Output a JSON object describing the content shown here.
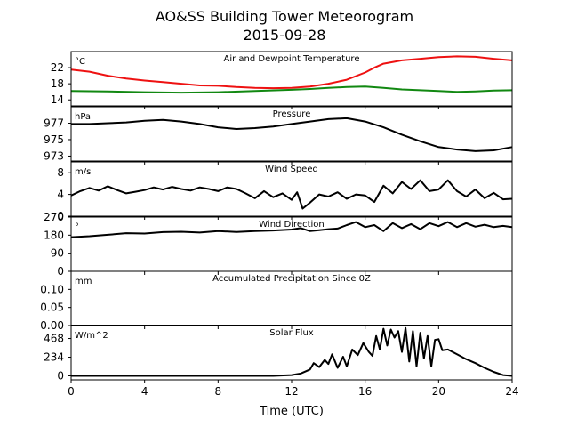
{
  "figure": {
    "title_line1": "AO&SS Building Tower Meteorogram",
    "title_line2": "2015-09-28",
    "xlabel": "Time (UTC)",
    "xticks": [
      0,
      4,
      8,
      12,
      16,
      20,
      24
    ],
    "xlim": [
      0,
      24
    ]
  },
  "chart_data": [
    {
      "type": "line",
      "title": "Air and Dewpoint Temperature",
      "unit": "°C",
      "ylim": [
        12.5,
        26
      ],
      "yticks": [
        14,
        18,
        22
      ],
      "series": [
        {
          "color": "#ee1111",
          "x": [
            0,
            1,
            2,
            3,
            4,
            5,
            6,
            7,
            8,
            9,
            10,
            11,
            12,
            13,
            14,
            15,
            16,
            16.5,
            17,
            18,
            19,
            20,
            21,
            22,
            23,
            24
          ],
          "values": [
            21.5,
            21.0,
            20.0,
            19.3,
            18.8,
            18.4,
            18.0,
            17.6,
            17.5,
            17.2,
            17.0,
            16.9,
            17.0,
            17.3,
            18.0,
            19.0,
            20.8,
            22.0,
            23.0,
            23.8,
            24.2,
            24.6,
            24.8,
            24.7,
            24.2,
            23.8
          ]
        },
        {
          "color": "#118811",
          "x": [
            0,
            2,
            4,
            6,
            8,
            10,
            12,
            13,
            14,
            15,
            16,
            17,
            18,
            19,
            20,
            21,
            22,
            23,
            24
          ],
          "values": [
            16.2,
            16.1,
            15.9,
            15.8,
            15.9,
            16.2,
            16.5,
            16.7,
            17.0,
            17.2,
            17.3,
            17.0,
            16.6,
            16.4,
            16.2,
            16.0,
            16.1,
            16.3,
            16.4
          ]
        }
      ]
    },
    {
      "type": "line",
      "title": "Pressure",
      "unit": "hPa",
      "ylim": [
        972.4,
        979
      ],
      "yticks": [
        973,
        975,
        977
      ],
      "series": [
        {
          "color": "#000000",
          "x": [
            0,
            1,
            2,
            3,
            4,
            5,
            6,
            7,
            8,
            9,
            10,
            11,
            12,
            13,
            14,
            15,
            16,
            17,
            18,
            19,
            20,
            21,
            22,
            23,
            24
          ],
          "values": [
            976.9,
            976.9,
            977.0,
            977.1,
            977.3,
            977.4,
            977.2,
            976.9,
            976.5,
            976.3,
            976.4,
            976.6,
            976.9,
            977.2,
            977.5,
            977.6,
            977.2,
            976.5,
            975.6,
            974.8,
            974.1,
            973.8,
            973.6,
            973.7,
            974.1
          ]
        }
      ]
    },
    {
      "type": "line",
      "title": "Wind Speed",
      "unit": "m/s",
      "ylim": [
        0,
        10
      ],
      "yticks": [
        0,
        4,
        8
      ],
      "series": [
        {
          "color": "#000000",
          "x": [
            0,
            0.5,
            1,
            1.5,
            2,
            2.5,
            3,
            3.5,
            4,
            4.5,
            5,
            5.5,
            6,
            6.5,
            7,
            7.5,
            8,
            8.5,
            9,
            9.5,
            10,
            10.5,
            11,
            11.5,
            12,
            12.3,
            12.6,
            13,
            13.5,
            14,
            14.5,
            15,
            15.5,
            16,
            16.5,
            17,
            17.5,
            18,
            18.5,
            19,
            19.5,
            20,
            20.5,
            21,
            21.5,
            22,
            22.5,
            23,
            23.5,
            24
          ],
          "values": [
            3.8,
            4.6,
            5.2,
            4.7,
            5.5,
            4.8,
            4.2,
            4.5,
            4.8,
            5.3,
            4.9,
            5.4,
            5.0,
            4.7,
            5.3,
            5.0,
            4.6,
            5.3,
            5.0,
            4.2,
            3.3,
            4.6,
            3.5,
            4.2,
            3.0,
            4.4,
            1.4,
            2.5,
            4.0,
            3.6,
            4.4,
            3.2,
            4.0,
            3.8,
            2.6,
            5.6,
            4.2,
            6.3,
            5.0,
            6.6,
            4.6,
            4.9,
            6.6,
            4.6,
            3.6,
            4.9,
            3.3,
            4.3,
            3.1,
            3.2
          ]
        }
      ]
    },
    {
      "type": "line",
      "title": "Wind Direction",
      "unit": "°",
      "ylim": [
        0,
        270
      ],
      "yticks": [
        0,
        90,
        180,
        270
      ],
      "series": [
        {
          "color": "#000000",
          "x": [
            0,
            1,
            2,
            3,
            4,
            5,
            6,
            7,
            8,
            9,
            10,
            11,
            12,
            12.5,
            13,
            13.5,
            14,
            14.5,
            15,
            15.5,
            16,
            16.5,
            17,
            17.5,
            18,
            18.5,
            19,
            19.5,
            20,
            20.5,
            21,
            21.5,
            22,
            22.5,
            23,
            23.5,
            24
          ],
          "values": [
            170,
            175,
            182,
            190,
            188,
            195,
            197,
            193,
            200,
            196,
            200,
            203,
            208,
            215,
            200,
            205,
            210,
            213,
            230,
            245,
            220,
            230,
            200,
            240,
            215,
            235,
            210,
            240,
            225,
            245,
            220,
            240,
            222,
            232,
            220,
            226,
            220
          ]
        }
      ]
    },
    {
      "type": "line",
      "title": "Accumulated Precipitation Since 0Z",
      "unit": "mm",
      "ylim": [
        0,
        0.15
      ],
      "yticks": [
        "0.00",
        "0.05",
        "0.10"
      ],
      "series": [
        {
          "color": "#000000",
          "x": [
            0,
            24
          ],
          "values": [
            0.0,
            0.0
          ]
        }
      ]
    },
    {
      "type": "line",
      "title": "Solar Flux",
      "unit": "W/m^2",
      "ylim": [
        -50,
        630
      ],
      "yticks": [
        0,
        234,
        468
      ],
      "series": [
        {
          "color": "#000000",
          "x": [
            0,
            6,
            10,
            11,
            12,
            12.5,
            13,
            13.2,
            13.5,
            13.8,
            14,
            14.2,
            14.5,
            14.8,
            15,
            15.3,
            15.6,
            15.9,
            16.2,
            16.4,
            16.6,
            16.8,
            17,
            17.2,
            17.4,
            17.6,
            17.8,
            18,
            18.2,
            18.4,
            18.6,
            18.8,
            19,
            19.2,
            19.4,
            19.6,
            19.8,
            20,
            20.2,
            20.5,
            21,
            21.5,
            22,
            22.5,
            23,
            23.5,
            24
          ],
          "values": [
            0,
            0,
            0,
            0,
            10,
            30,
            80,
            160,
            110,
            200,
            150,
            270,
            100,
            240,
            120,
            330,
            260,
            410,
            300,
            250,
            500,
            330,
            590,
            380,
            580,
            480,
            560,
            300,
            600,
            180,
            560,
            120,
            540,
            220,
            500,
            120,
            450,
            460,
            320,
            330,
            270,
            210,
            160,
            100,
            50,
            10,
            0
          ]
        }
      ]
    }
  ]
}
